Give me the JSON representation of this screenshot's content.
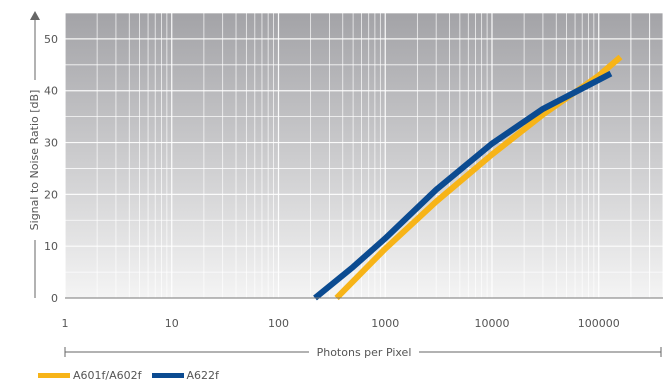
{
  "chart_data": {
    "type": "line",
    "title": "",
    "xlabel": "Photons per Pixel",
    "ylabel": "Signal to Noise Ratio [dB]",
    "x_scale": "log",
    "xlim": [
      1,
      400000
    ],
    "ylim": [
      0,
      55
    ],
    "x_ticks": [
      1,
      10,
      100,
      1000,
      10000,
      100000
    ],
    "x_tick_labels": [
      "1",
      "10",
      "100",
      "1000",
      "10000",
      "100000"
    ],
    "y_ticks": [
      0,
      10,
      20,
      30,
      40,
      50
    ],
    "y_tick_labels": [
      "0",
      "10",
      "20",
      "30",
      "40",
      "50"
    ],
    "grid": true,
    "legend": "bottom-left",
    "series": [
      {
        "name": "A601f/A602f",
        "color": "#F7B418",
        "points": [
          [
            350,
            0
          ],
          [
            1000,
            9.5
          ],
          [
            3000,
            18.6
          ],
          [
            10000,
            27.7
          ],
          [
            30000,
            35.4
          ],
          [
            100000,
            42.9
          ],
          [
            160000,
            46.5
          ]
        ]
      },
      {
        "name": "A622f",
        "color": "#0B4B91",
        "points": [
          [
            220,
            0
          ],
          [
            500,
            6
          ],
          [
            1000,
            11.5
          ],
          [
            3000,
            20.9
          ],
          [
            10000,
            29.8
          ],
          [
            30000,
            36.5
          ],
          [
            130000,
            43.3
          ]
        ]
      }
    ]
  }
}
